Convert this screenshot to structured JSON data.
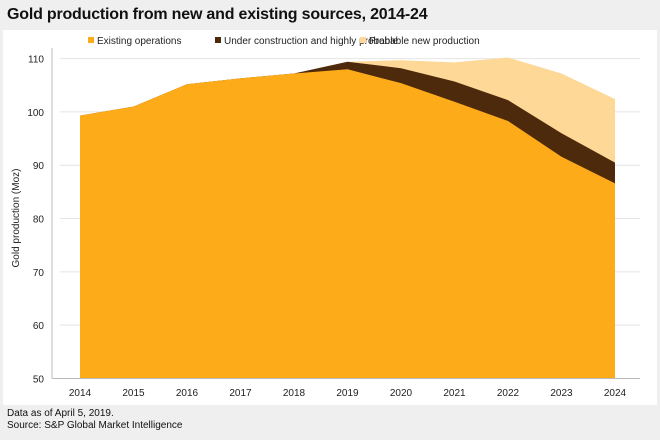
{
  "title": "Gold production from new and existing sources, 2014-24",
  "footnotes": [
    "Data as of April 5, 2019.",
    "Source: S&P Global Market Intelligence"
  ],
  "chart_data": {
    "type": "area",
    "stacked": true,
    "title": "Gold production from new and existing sources, 2014-24",
    "xlabel": "",
    "ylabel": "Gold production (Moz)",
    "ylim": [
      50,
      110
    ],
    "yticks": [
      50,
      60,
      70,
      80,
      90,
      100,
      110
    ],
    "x": [
      "2014",
      "2015",
      "2016",
      "2017",
      "2018",
      "2019",
      "2020",
      "2021",
      "2022",
      "2023",
      "2024"
    ],
    "legend_position": "top",
    "grid": true,
    "series": [
      {
        "name": "Existing operations",
        "color": "#fdab19",
        "top": [
          99.3,
          101.0,
          105.2,
          106.3,
          107.2,
          108.0,
          105.4,
          101.9,
          98.3,
          91.6,
          86.6
        ]
      },
      {
        "name": "Under construction and highly probable",
        "color": "#4e2a0c",
        "top": [
          99.3,
          101.0,
          105.2,
          106.3,
          107.2,
          109.4,
          108.2,
          105.7,
          102.2,
          96.0,
          90.5
        ]
      },
      {
        "name": "Probable new production",
        "color": "#fdd897",
        "top": [
          99.3,
          101.0,
          105.2,
          106.3,
          107.2,
          109.4,
          109.7,
          109.3,
          110.2,
          107.2,
          102.4
        ]
      }
    ]
  }
}
